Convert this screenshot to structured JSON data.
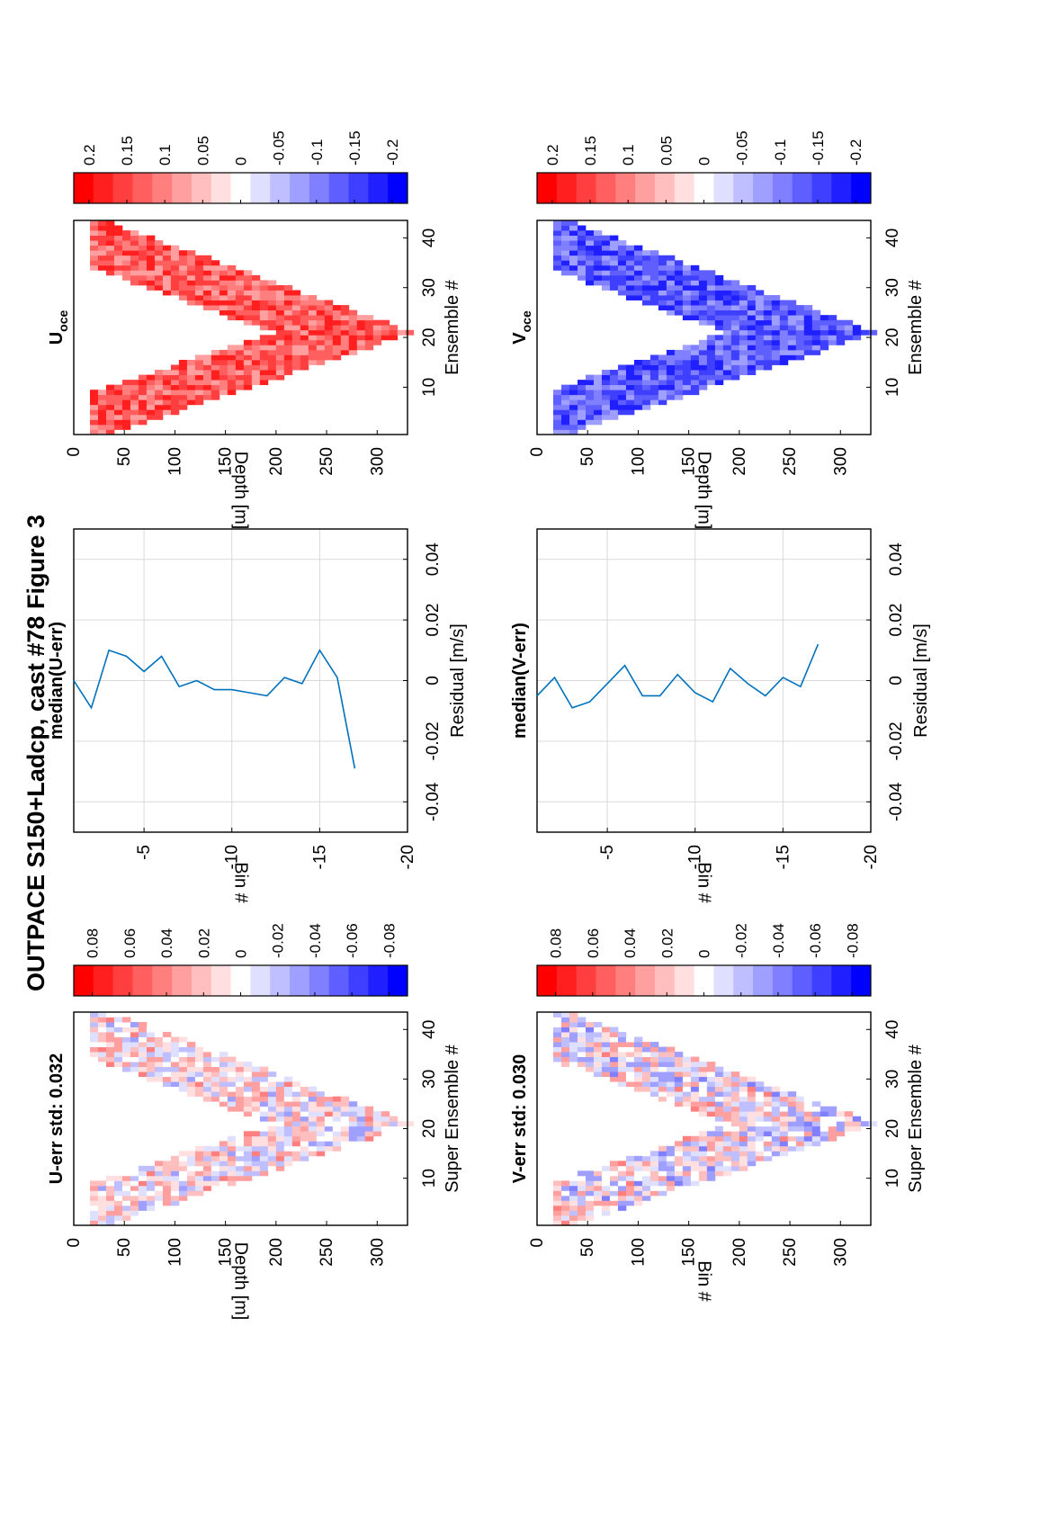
{
  "figure": {
    "title": "OUTPACE S150+Ladcp, cast #78  Figure 3"
  },
  "colors": {
    "diverging_scale": [
      "#0000ff",
      "#1f1fff",
      "#3f3fff",
      "#5f5fff",
      "#7f7fff",
      "#9f9fff",
      "#bfbfff",
      "#dfdfff",
      "#ffffff",
      "#ffdfdf",
      "#ffbfbf",
      "#ff9f9f",
      "#ff7f7f",
      "#ff5f5f",
      "#ff3f3f",
      "#ff1f1f",
      "#ff0000"
    ],
    "line": "#0072bd",
    "grid": "#d9d9d9"
  },
  "chart_data": [
    {
      "id": "uerr",
      "type": "heatmap",
      "title": "U-err std: 0.032",
      "xlabel": "Super Ensemble #",
      "ylabel": "Depth [m]",
      "xlim": [
        0.5,
        43.5
      ],
      "ylim": [
        0,
        330
      ],
      "xticks": [
        10,
        20,
        30,
        40
      ],
      "yticks": [
        0,
        50,
        100,
        150,
        200,
        250,
        300
      ],
      "clim": [
        -0.09,
        0.09
      ],
      "colorbar_ticks": [
        0.08,
        0.06,
        0.04,
        0.02,
        0,
        -0.02,
        -0.04,
        -0.06,
        -0.08
      ],
      "colorbar_labels": [
        "0.08",
        "0.06",
        "0.04",
        "0.02",
        "0",
        "-0.02",
        "-0.04",
        "-0.06",
        "-0.08"
      ],
      "profile": {
        "top_start": 30,
        "top_end": 30,
        "vertex_x": 21,
        "vertex_depth": 325,
        "thickness": 125
      },
      "pattern_seed": 11,
      "mean_value": 0.005,
      "spread": 0.035
    },
    {
      "id": "vmedian",
      "type": "line",
      "title": "median(V-err)",
      "xlabel": "Residual [m/s]",
      "ylabel": "Bin #",
      "xlim": [
        -0.05,
        0.05
      ],
      "ylim": [
        -20,
        -1
      ],
      "xticks": [
        -0.04,
        -0.02,
        0,
        0.02,
        0.04
      ],
      "xtick_labels": [
        "-0.04",
        "-0.02",
        "0",
        "0.02",
        "0.04"
      ],
      "yticks": [
        -5,
        -10,
        -15,
        -20
      ],
      "ytick_labels": [
        "-5",
        "-10",
        "-15",
        "-20"
      ],
      "x": [
        -0.005,
        0.001,
        -0.009,
        -0.007,
        -0.001,
        0.005,
        -0.005,
        -0.005,
        0.002,
        -0.004,
        -0.007,
        0.004,
        -0.001,
        -0.005,
        0.001,
        -0.002,
        0.012
      ],
      "y": [
        -1,
        -2,
        -3,
        -4,
        -5,
        -6,
        -7,
        -8,
        -9,
        -10,
        -11,
        -12,
        -13,
        -14,
        -15,
        -16,
        -17
      ]
    },
    {
      "id": "voce",
      "type": "heatmap",
      "title": "V",
      "title_sub": "oce",
      "xlabel": "Ensemble #",
      "ylabel": "Depth [m]",
      "xlim": [
        0.5,
        43.5
      ],
      "ylim": [
        0,
        330
      ],
      "xticks": [
        10,
        20,
        30,
        40
      ],
      "yticks": [
        0,
        50,
        100,
        150,
        200,
        250,
        300
      ],
      "clim": [
        -0.22,
        0.22
      ],
      "colorbar_ticks": [
        0.2,
        0.15,
        0.1,
        0.05,
        0,
        -0.05,
        -0.1,
        -0.15,
        -0.2
      ],
      "colorbar_labels": [
        "0.2",
        "0.15",
        "0.1",
        "0.05",
        "0",
        "-0.05",
        "-0.1",
        "-0.15",
        "-0.2"
      ],
      "profile": {
        "top_start": 25,
        "top_end": 25,
        "vertex_x": 21,
        "vertex_depth": 325,
        "thickness": 135
      },
      "pattern_seed": 23,
      "mean_value": -0.13,
      "spread": 0.06
    },
    {
      "id": "verr",
      "type": "heatmap",
      "title": "V-err std: 0.030",
      "xlabel": "Super Ensemble #",
      "ylabel": "Bin #",
      "xlim": [
        0.5,
        43.5
      ],
      "ylim": [
        0,
        330
      ],
      "xticks": [
        10,
        20,
        30,
        40
      ],
      "yticks": [
        0,
        50,
        100,
        150,
        200,
        250,
        300
      ],
      "clim": [
        -0.09,
        0.09
      ],
      "colorbar_ticks": [
        0.08,
        0.06,
        0.04,
        0.02,
        0,
        -0.02,
        -0.04,
        -0.06,
        -0.08
      ],
      "colorbar_labels": [
        "0.08",
        "0.06",
        "0.04",
        "0.02",
        "0",
        "-0.02",
        "-0.04",
        "-0.06",
        "-0.08"
      ],
      "profile": {
        "top_start": 30,
        "top_end": 25,
        "vertex_x": 21,
        "vertex_depth": 325,
        "thickness": 130
      },
      "pattern_seed": 37,
      "mean_value": 0.0,
      "spread": 0.04
    },
    {
      "id": "umedian",
      "type": "line",
      "title": "median(U-err)",
      "xlabel": "Residual [m/s]",
      "ylabel": "Bin #",
      "xlim": [
        -0.05,
        0.05
      ],
      "ylim": [
        -20,
        -1
      ],
      "xticks": [
        -0.04,
        -0.02,
        0,
        0.02,
        0.04
      ],
      "xtick_labels": [
        "-0.04",
        "-0.02",
        "0",
        "0.02",
        "0.04"
      ],
      "yticks": [
        -5,
        -10,
        -15,
        -20
      ],
      "ytick_labels": [
        "-5",
        "-10",
        "-15",
        "-20"
      ],
      "x": [
        0.0,
        -0.009,
        0.01,
        0.008,
        0.003,
        0.008,
        -0.002,
        0.0,
        -0.003,
        -0.003,
        -0.004,
        -0.005,
        0.001,
        -0.001,
        0.01,
        0.001,
        -0.029
      ],
      "y": [
        -1,
        -2,
        -3,
        -4,
        -5,
        -6,
        -7,
        -8,
        -9,
        -10,
        -11,
        -12,
        -13,
        -14,
        -15,
        -16,
        -17
      ]
    },
    {
      "id": "uoce",
      "type": "heatmap",
      "title": "U",
      "title_sub": "oce",
      "xlabel": "Ensemble #",
      "ylabel": "Depth [m]",
      "xlim": [
        0.5,
        43.5
      ],
      "ylim": [
        0,
        330
      ],
      "xticks": [
        10,
        20,
        30,
        40
      ],
      "yticks": [
        0,
        50,
        100,
        150,
        200,
        250,
        300
      ],
      "clim": [
        -0.22,
        0.22
      ],
      "colorbar_ticks": [
        0.2,
        0.15,
        0.1,
        0.05,
        0,
        -0.05,
        -0.1,
        -0.15,
        -0.2
      ],
      "colorbar_labels": [
        "0.2",
        "0.15",
        "0.1",
        "0.05",
        "0",
        "-0.05",
        "-0.1",
        "-0.15",
        "-0.2"
      ],
      "profile": {
        "top_start": 30,
        "top_end": 25,
        "vertex_x": 21,
        "vertex_depth": 325,
        "thickness": 125
      },
      "pattern_seed": 51,
      "mean_value": 0.13,
      "spread": 0.06
    }
  ]
}
